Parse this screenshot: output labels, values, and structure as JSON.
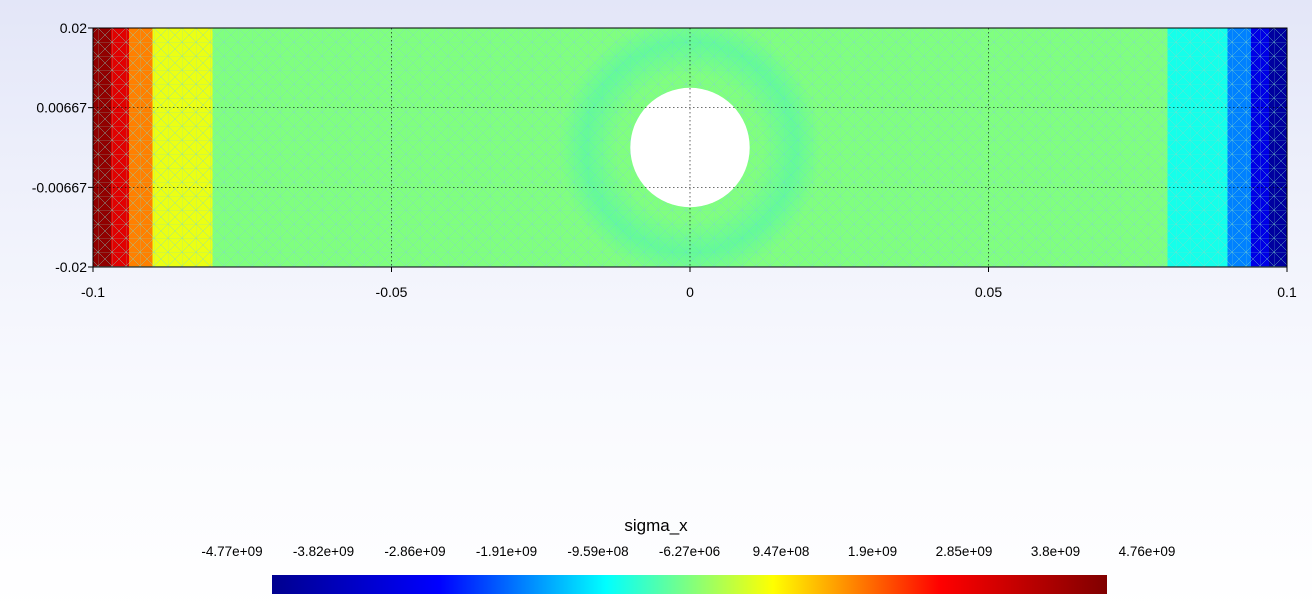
{
  "chart_data": {
    "type": "heatmap",
    "title": "",
    "xlabel": "",
    "ylabel": "",
    "field_name": "sigma_x",
    "xlim": [
      -0.1,
      0.1
    ],
    "ylim": [
      -0.02,
      0.02
    ],
    "x_ticks": [
      -0.1,
      -0.05,
      0,
      0.05,
      0.1
    ],
    "x_tick_labels": [
      "-0.1",
      "-0.05",
      "0",
      "0.05",
      "0.1"
    ],
    "y_ticks": [
      0.02,
      0.00667,
      -0.00667,
      -0.02
    ],
    "y_tick_labels": [
      "0.02",
      "0.00667",
      "-0.00667",
      "-0.02"
    ],
    "grid": true,
    "hole": {
      "center_x": 0,
      "center_y": 0,
      "radius": 0.01
    },
    "colorbar": {
      "label": "sigma_x",
      "placement": "bottom",
      "min": -4770000000.0,
      "max": 4760000000.0,
      "tick_labels": [
        "-4.77e+09",
        "-3.82e+09",
        "-2.86e+09",
        "-1.91e+09",
        "-9.59e+08",
        "-6.27e+06",
        "9.47e+08",
        "1.9e+09",
        "2.85e+09",
        "3.8e+09",
        "4.76e+09"
      ],
      "colors": [
        "#00008f",
        "#0000ff",
        "#00ffff",
        "#ffff00",
        "#ff0000",
        "#800000"
      ]
    },
    "field_bands": [
      {
        "x_from": -0.1,
        "x_to": -0.097,
        "value": 4500000000.0
      },
      {
        "x_from": -0.097,
        "x_to": -0.094,
        "value": 3300000000.0
      },
      {
        "x_from": -0.094,
        "x_to": -0.09,
        "value": 1900000000.0
      },
      {
        "x_from": -0.09,
        "x_to": -0.08,
        "value": 800000000.0
      },
      {
        "x_from": -0.08,
        "x_to": 0.08,
        "value": 0
      },
      {
        "x_from": 0.08,
        "x_to": 0.09,
        "value": -800000000.0
      },
      {
        "x_from": 0.09,
        "x_to": 0.094,
        "value": -1900000000.0
      },
      {
        "x_from": 0.094,
        "x_to": 0.097,
        "value": -3300000000.0
      },
      {
        "x_from": 0.097,
        "x_to": 0.1,
        "value": -4500000000.0
      }
    ]
  }
}
